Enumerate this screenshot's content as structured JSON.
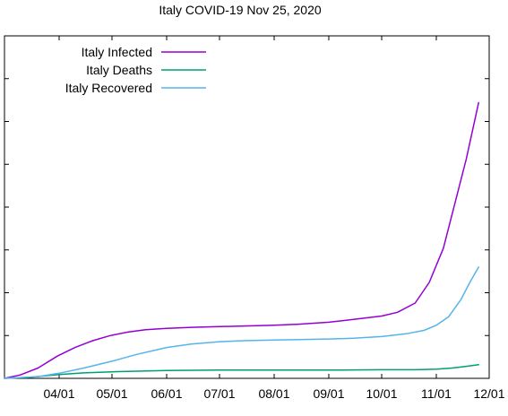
{
  "chart_data": {
    "type": "line",
    "title": "Italy COVID-19 Nov 25, 2020",
    "xlabel": "",
    "ylabel": "",
    "x_axis": {
      "type": "date",
      "range": [
        "2020-03-01",
        "2020-12-01"
      ],
      "ticks": [
        {
          "date": "2020-04-01",
          "label": "04/01"
        },
        {
          "date": "2020-05-01",
          "label": "05/01"
        },
        {
          "date": "2020-06-01",
          "label": "06/01"
        },
        {
          "date": "2020-07-01",
          "label": "07/01"
        },
        {
          "date": "2020-08-01",
          "label": "08/01"
        },
        {
          "date": "2020-09-01",
          "label": "09/01"
        },
        {
          "date": "2020-10-01",
          "label": "10/01"
        },
        {
          "date": "2020-11-01",
          "label": "11/01"
        },
        {
          "date": "2020-12-01",
          "label": "12/01"
        }
      ]
    },
    "y_axis": {
      "range": [
        0,
        1
      ],
      "tick_count": 8,
      "tick_labels_visible": false
    },
    "grid": false,
    "legend": {
      "placement": "top-left"
    },
    "series": [
      {
        "name": "Italy Infected",
        "color": "#9400d3",
        "points": [
          [
            "2020-03-01",
            0.0
          ],
          [
            "2020-03-10",
            0.01
          ],
          [
            "2020-03-20",
            0.03
          ],
          [
            "2020-03-31",
            0.065
          ],
          [
            "2020-04-10",
            0.09
          ],
          [
            "2020-04-20",
            0.11
          ],
          [
            "2020-04-30",
            0.125
          ],
          [
            "2020-05-10",
            0.135
          ],
          [
            "2020-05-20",
            0.142
          ],
          [
            "2020-06-01",
            0.146
          ],
          [
            "2020-06-15",
            0.149
          ],
          [
            "2020-07-01",
            0.151
          ],
          [
            "2020-07-15",
            0.153
          ],
          [
            "2020-08-01",
            0.155
          ],
          [
            "2020-08-15",
            0.158
          ],
          [
            "2020-09-01",
            0.164
          ],
          [
            "2020-09-15",
            0.172
          ],
          [
            "2020-10-01",
            0.182
          ],
          [
            "2020-10-10",
            0.193
          ],
          [
            "2020-10-20",
            0.22
          ],
          [
            "2020-10-28",
            0.28
          ],
          [
            "2020-11-05",
            0.38
          ],
          [
            "2020-11-12",
            0.52
          ],
          [
            "2020-11-18",
            0.64
          ],
          [
            "2020-11-25",
            0.805
          ]
        ]
      },
      {
        "name": "Italy Deaths",
        "color": "#009e73",
        "points": [
          [
            "2020-03-01",
            0.0
          ],
          [
            "2020-03-15",
            0.003
          ],
          [
            "2020-04-01",
            0.011
          ],
          [
            "2020-04-15",
            0.016
          ],
          [
            "2020-05-01",
            0.019
          ],
          [
            "2020-05-15",
            0.021
          ],
          [
            "2020-06-01",
            0.023
          ],
          [
            "2020-07-01",
            0.024
          ],
          [
            "2020-08-01",
            0.024
          ],
          [
            "2020-09-01",
            0.024
          ],
          [
            "2020-10-01",
            0.025
          ],
          [
            "2020-10-20",
            0.025
          ],
          [
            "2020-11-01",
            0.027
          ],
          [
            "2020-11-10",
            0.03
          ],
          [
            "2020-11-18",
            0.035
          ],
          [
            "2020-11-25",
            0.04
          ]
        ]
      },
      {
        "name": "Italy Recovered",
        "color": "#56b4e9",
        "points": [
          [
            "2020-03-01",
            0.0
          ],
          [
            "2020-03-20",
            0.005
          ],
          [
            "2020-04-01",
            0.015
          ],
          [
            "2020-04-15",
            0.03
          ],
          [
            "2020-05-01",
            0.05
          ],
          [
            "2020-05-15",
            0.07
          ],
          [
            "2020-06-01",
            0.09
          ],
          [
            "2020-06-15",
            0.1
          ],
          [
            "2020-07-01",
            0.107
          ],
          [
            "2020-07-15",
            0.11
          ],
          [
            "2020-08-01",
            0.112
          ],
          [
            "2020-08-15",
            0.113
          ],
          [
            "2020-09-01",
            0.115
          ],
          [
            "2020-09-15",
            0.117
          ],
          [
            "2020-10-01",
            0.122
          ],
          [
            "2020-10-15",
            0.13
          ],
          [
            "2020-10-25",
            0.14
          ],
          [
            "2020-11-01",
            0.155
          ],
          [
            "2020-11-08",
            0.18
          ],
          [
            "2020-11-15",
            0.23
          ],
          [
            "2020-11-20",
            0.28
          ],
          [
            "2020-11-25",
            0.325
          ]
        ]
      }
    ]
  }
}
